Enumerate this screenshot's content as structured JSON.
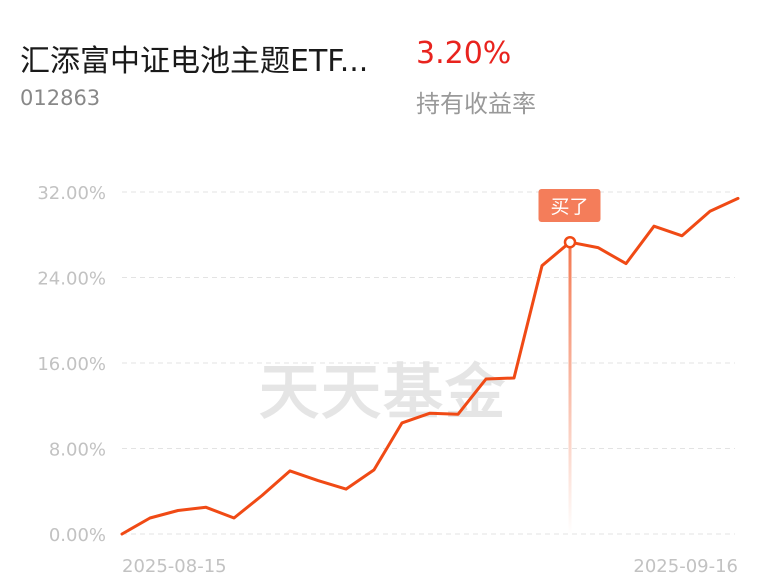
{
  "header": {
    "fund_name": "汇添富中证电池主题ETF...",
    "return_value": "3.20%",
    "fund_code": "012863",
    "return_label": "持有收益率"
  },
  "colors": {
    "line": "#f04a15",
    "positive": "#e8231e",
    "grid": "#e3e3e3",
    "tick": "#c2c2c2",
    "marker_bg": "#f47d5a"
  },
  "watermark": "天天基金",
  "chart_data": {
    "type": "line",
    "ylim": [
      0,
      32
    ],
    "y_ticks": [
      0,
      8,
      16,
      24,
      32
    ],
    "y_tick_labels": [
      "0.00%",
      "8.00%",
      "16.00%",
      "24.00%",
      "32.00%"
    ],
    "x_tick_labels": [
      "2025-08-15",
      "2025-09-16"
    ],
    "grid": true,
    "series": [
      {
        "values": [
          0.0,
          1.5,
          2.2,
          2.5,
          1.5,
          3.6,
          5.9,
          5.0,
          4.2,
          6.0,
          10.4,
          11.3,
          11.2,
          14.5,
          14.6,
          25.1,
          27.3,
          26.8,
          25.3,
          28.8,
          27.9,
          30.2,
          31.4
        ]
      }
    ],
    "annotation": {
      "label": "买了",
      "index": 16
    }
  }
}
